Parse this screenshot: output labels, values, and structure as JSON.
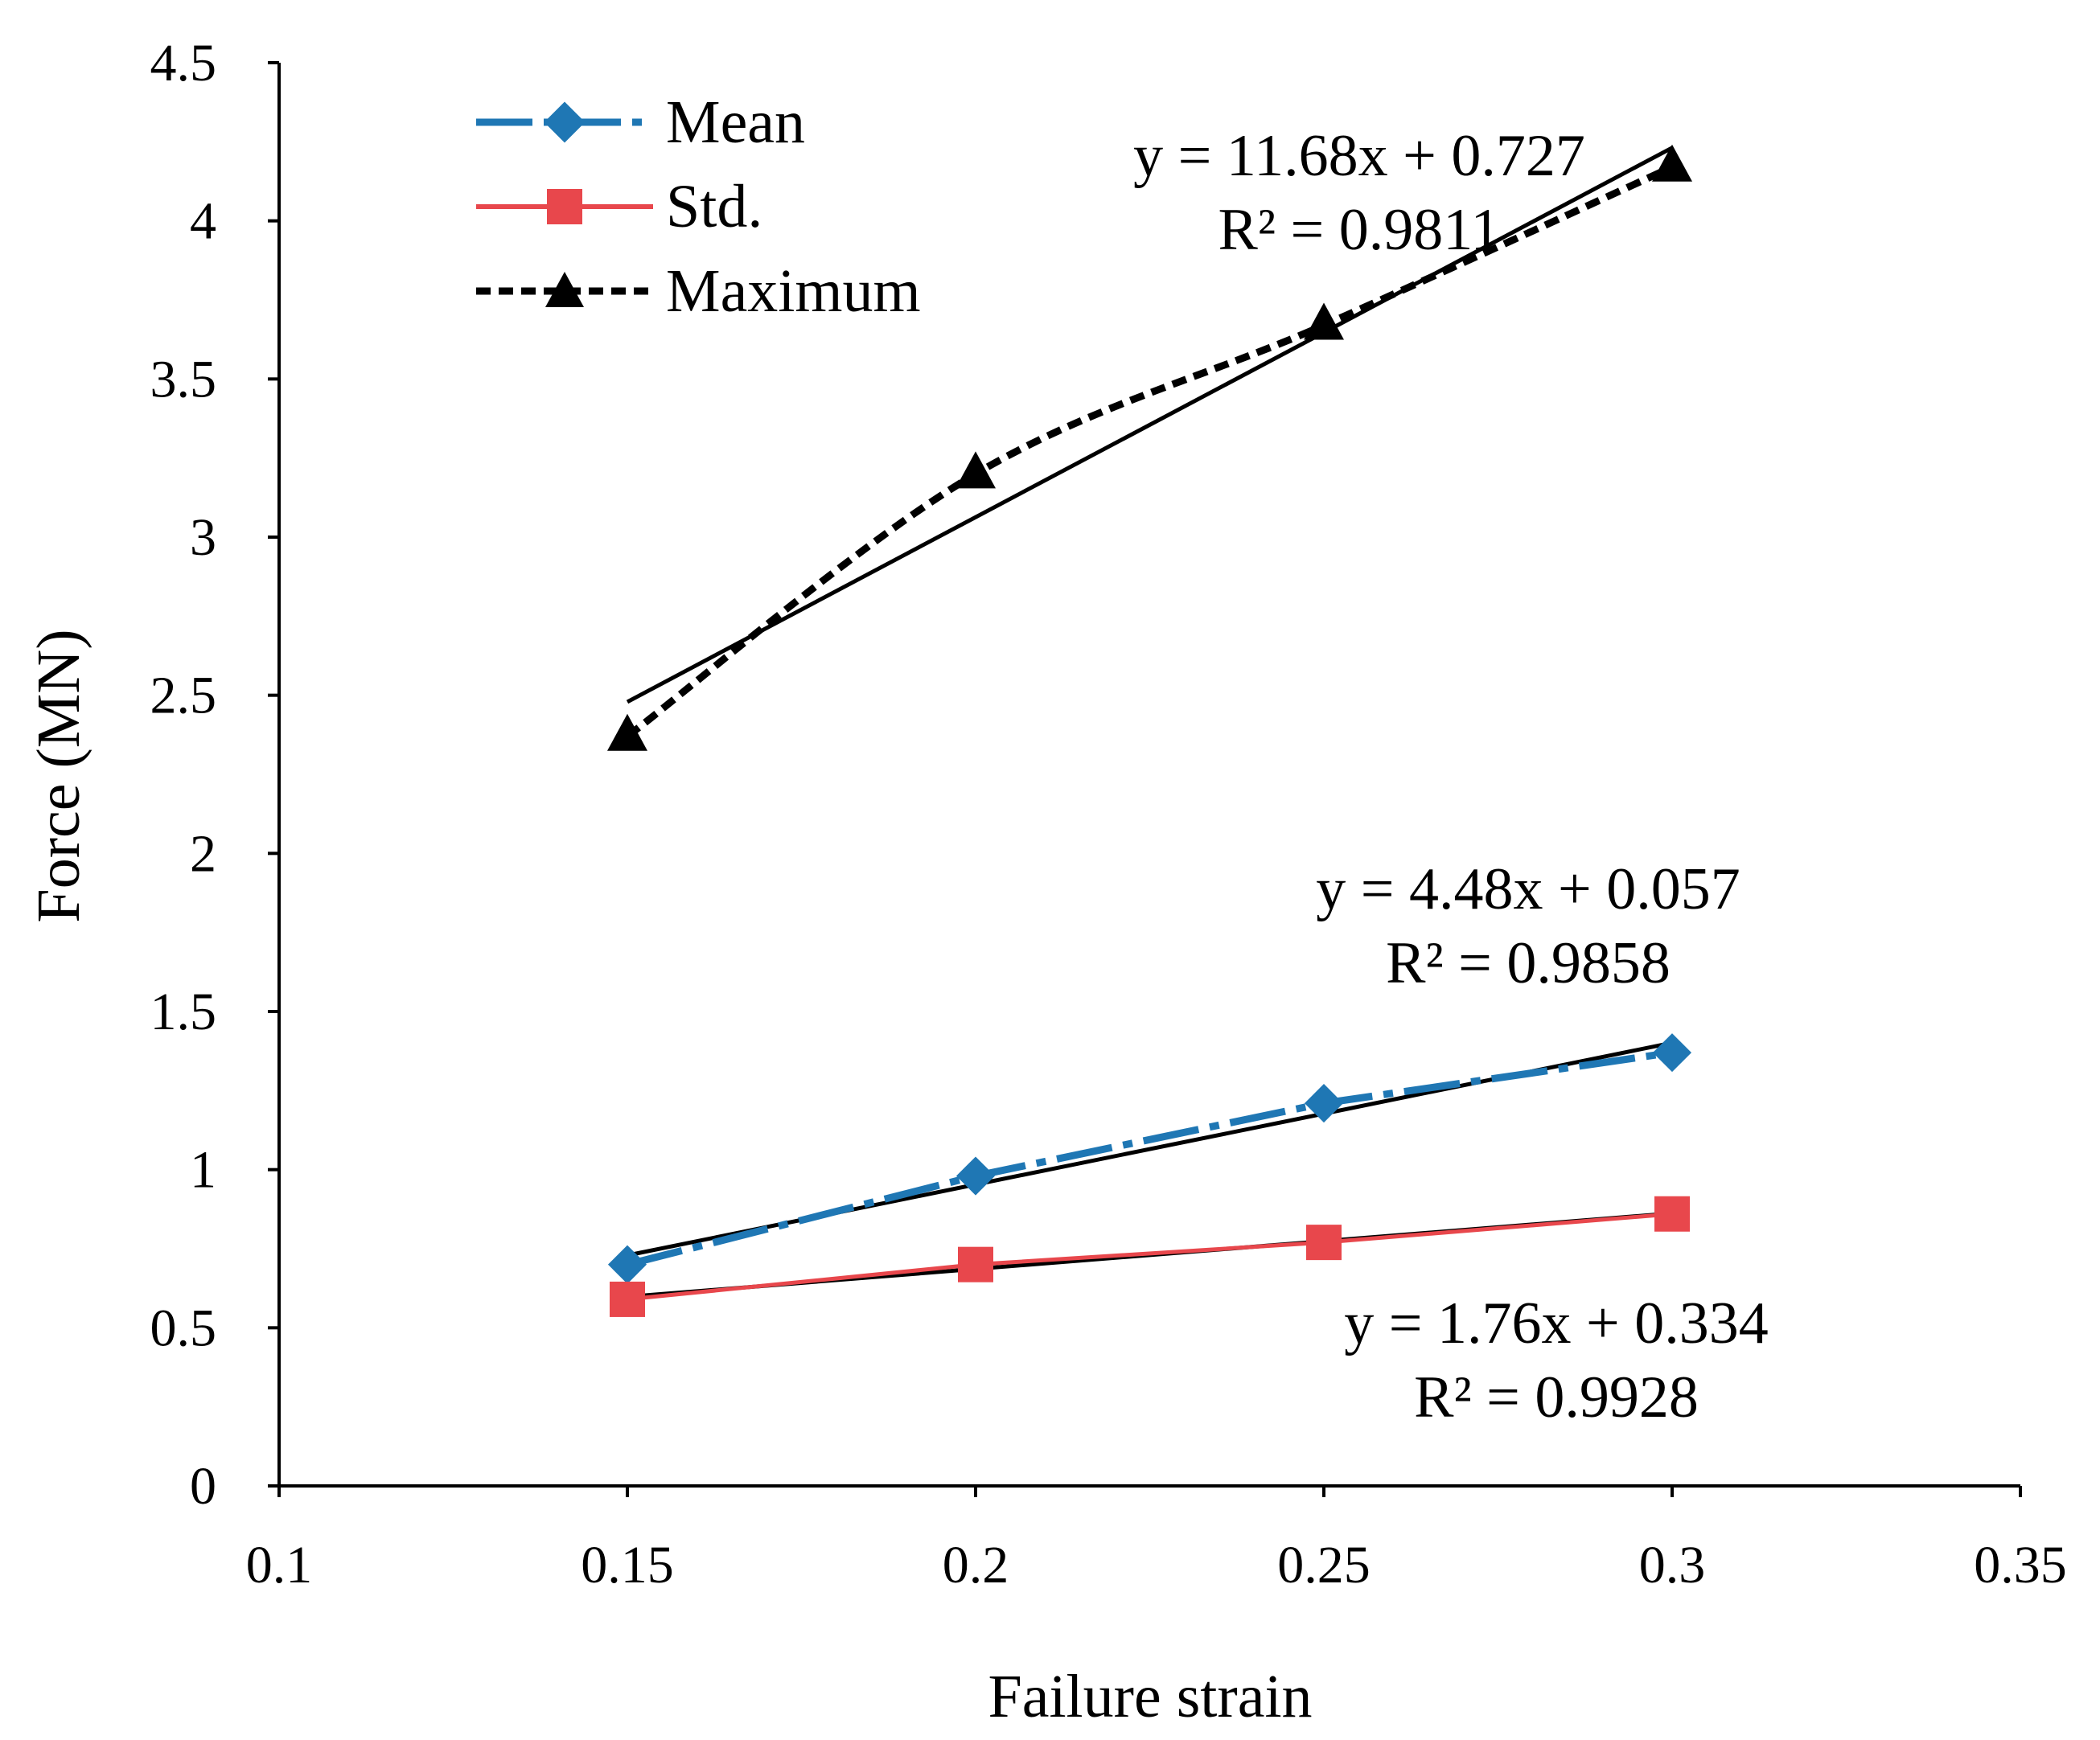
{
  "chart_data": {
    "type": "line",
    "xlabel": "Failure strain",
    "ylabel": "Force (MN)",
    "xlim": [
      0.1,
      0.35
    ],
    "ylim": [
      0,
      4.5
    ],
    "x_ticks": [
      0.1,
      0.15,
      0.2,
      0.25,
      0.3,
      0.35
    ],
    "x_tick_labels": [
      "0.1",
      "0.15",
      "0.2",
      "0.25",
      "0.3",
      "0.35"
    ],
    "y_ticks": [
      0,
      0.5,
      1,
      1.5,
      2,
      2.5,
      3,
      3.5,
      4,
      4.5
    ],
    "y_tick_labels": [
      "0",
      "0.5",
      "1",
      "1.5",
      "2",
      "2.5",
      "3",
      "3.5",
      "4",
      "4.5"
    ],
    "grid": false,
    "legend_position": "top-left",
    "x": [
      0.15,
      0.2,
      0.25,
      0.3
    ],
    "series": [
      {
        "name": "Mean",
        "values": [
          0.7,
          0.98,
          1.21,
          1.37
        ],
        "color": "#1f77b4",
        "marker": "diamond",
        "line_style": "dash-dot",
        "trendline": {
          "slope": 4.48,
          "intercept": 0.057,
          "equation": "y = 4.48x + 0.057",
          "r2": "R² = 0.9858"
        }
      },
      {
        "name": "Std.",
        "values": [
          0.59,
          0.7,
          0.77,
          0.86
        ],
        "color": "#e8474c",
        "marker": "square",
        "line_style": "solid",
        "trendline": {
          "slope": 1.76,
          "intercept": 0.334,
          "equation": "y = 1.76x + 0.334",
          "r2": "R² = 0.9928"
        }
      },
      {
        "name": "Maximum",
        "values": [
          2.37,
          3.2,
          3.67,
          4.17
        ],
        "color": "#000000",
        "marker": "triangle",
        "line_style": "dotted",
        "trendline": {
          "slope": 11.68,
          "intercept": 0.727,
          "equation": "y = 11.68x + 0.727",
          "r2": "R² = 0.9811"
        }
      }
    ]
  }
}
